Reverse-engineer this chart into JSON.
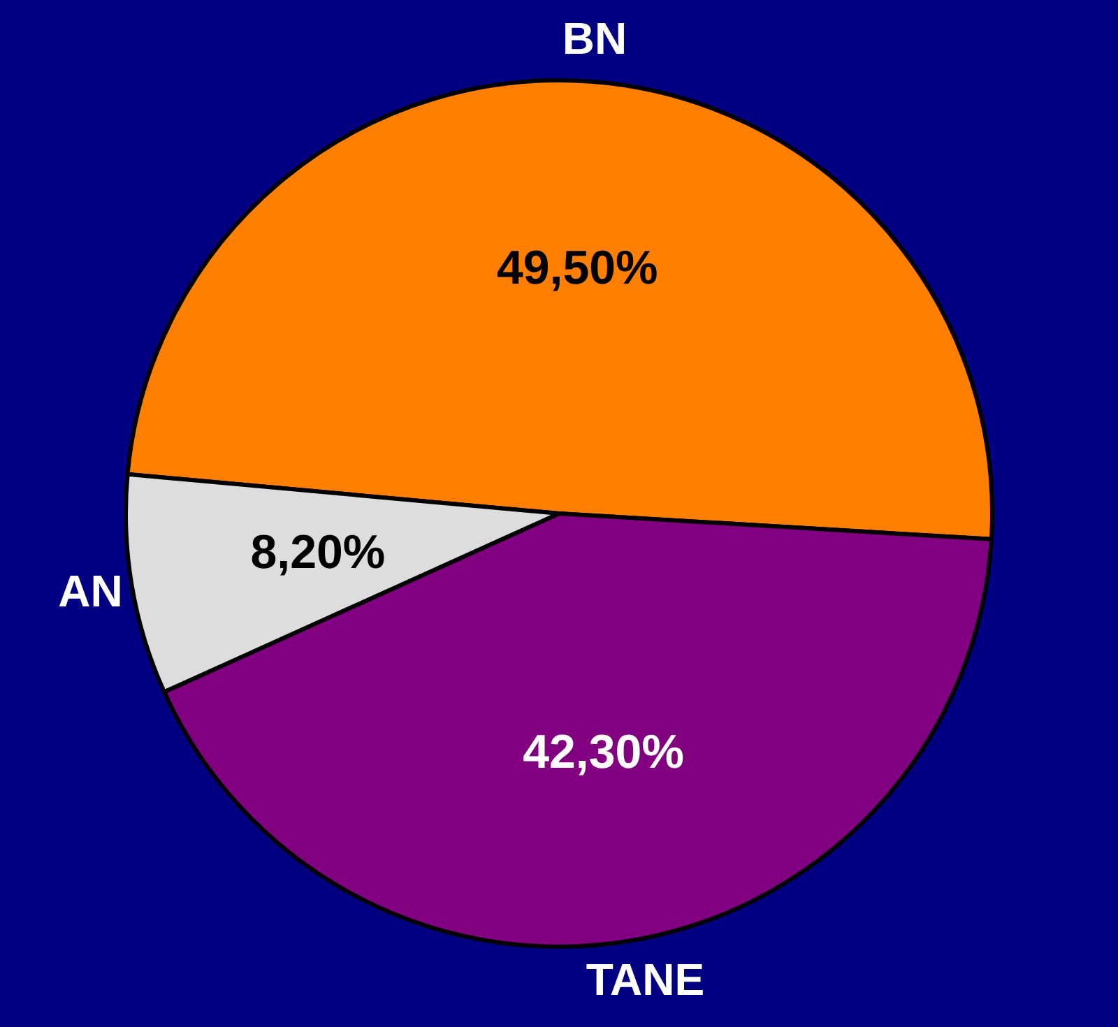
{
  "chart_data": {
    "type": "pie",
    "categories": [
      "BN",
      "TANE",
      "AN"
    ],
    "values": [
      49.5,
      42.3,
      8.2
    ],
    "colors": [
      "#ff8000",
      "#800080",
      "#dddddd"
    ],
    "value_labels": [
      "49,50%",
      "42,30%",
      "8,20%"
    ]
  }
}
